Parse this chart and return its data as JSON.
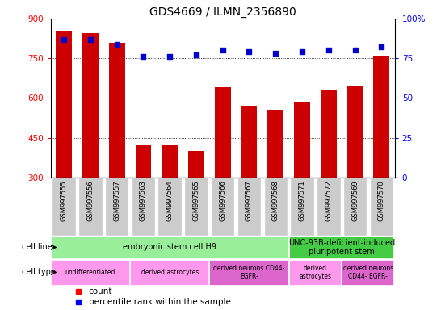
{
  "title": "GDS4669 / ILMN_2356890",
  "samples": [
    "GSM997555",
    "GSM997556",
    "GSM997557",
    "GSM997563",
    "GSM997564",
    "GSM997565",
    "GSM997566",
    "GSM997567",
    "GSM997568",
    "GSM997571",
    "GSM997572",
    "GSM997569",
    "GSM997570"
  ],
  "counts": [
    855,
    845,
    810,
    425,
    420,
    400,
    640,
    570,
    555,
    585,
    630,
    645,
    760
  ],
  "percentiles": [
    87,
    87,
    84,
    76,
    76,
    77,
    80,
    79,
    78,
    79,
    80,
    80,
    82
  ],
  "ylim_left": [
    300,
    900
  ],
  "ylim_right": [
    0,
    100
  ],
  "yticks_left": [
    300,
    450,
    600,
    750,
    900
  ],
  "yticks_right": [
    0,
    25,
    50,
    75,
    100
  ],
  "bar_color": "#cc0000",
  "dot_color": "#0000cc",
  "cell_line_data": [
    {
      "label": "embryonic stem cell H9",
      "start": 0,
      "end": 9,
      "color": "#99ee99"
    },
    {
      "label": "UNC-93B-deficient-induced\npluripotent stem",
      "start": 9,
      "end": 13,
      "color": "#44cc44"
    }
  ],
  "cell_type_data": [
    {
      "label": "undifferentiated",
      "start": 0,
      "end": 3,
      "color": "#ff99ee"
    },
    {
      "label": "derived astrocytes",
      "start": 3,
      "end": 6,
      "color": "#ff99ee"
    },
    {
      "label": "derived neurons CD44-\nEGFR-",
      "start": 6,
      "end": 9,
      "color": "#dd66cc"
    },
    {
      "label": "derived\nastrocytes",
      "start": 9,
      "end": 11,
      "color": "#ff99ee"
    },
    {
      "label": "derived neurons\nCD44- EGFR-",
      "start": 11,
      "end": 13,
      "color": "#dd66cc"
    }
  ],
  "chart_bg": "#ffffff",
  "xtick_bg": "#cccccc",
  "background_color": "#ffffff"
}
